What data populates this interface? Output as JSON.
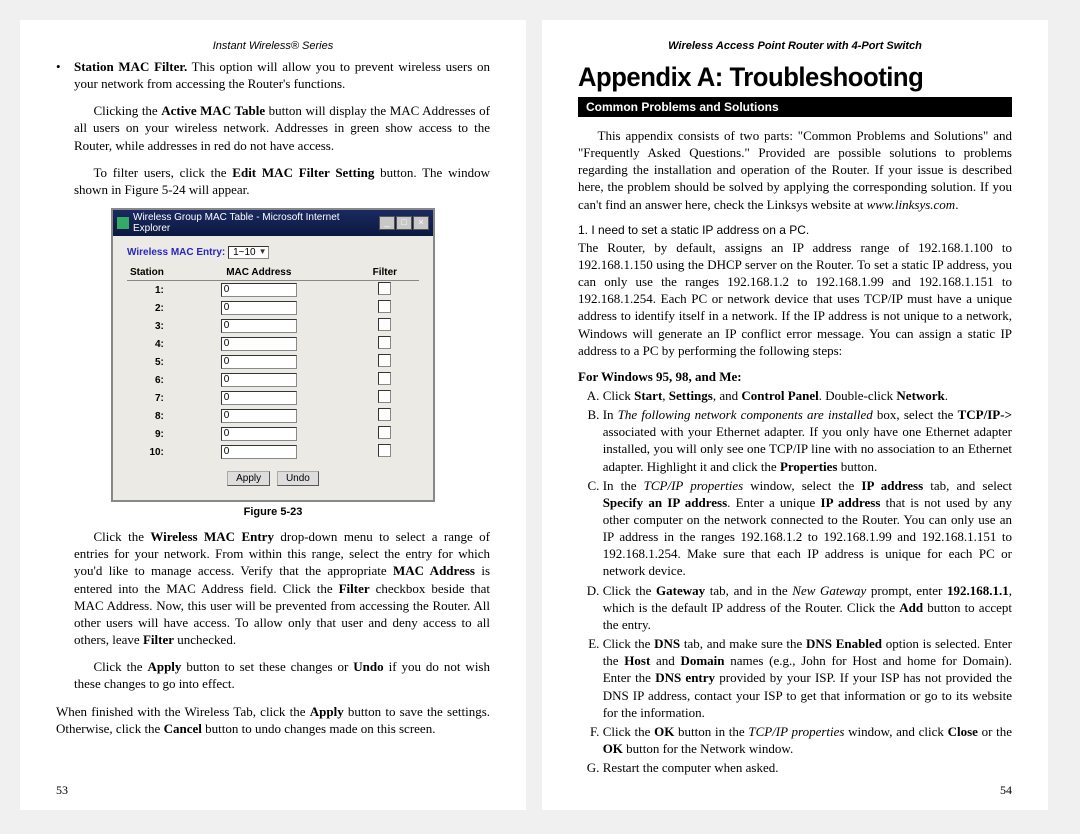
{
  "left": {
    "header": "Instant Wireless® Series",
    "bullet_lead": "Station MAC Filter.",
    "bullet_rest": " This option will allow you to prevent wireless users on your network from accessing the Router's functions.",
    "p1a": "Clicking the ",
    "p1b": "Active MAC Table",
    "p1c": "  button will display the MAC Addresses of all users on your wireless network. Addresses in green show access to the Router, while addresses in red do not have access.",
    "p2a": "To filter users, click the ",
    "p2b": "Edit MAC Filter Setting",
    "p2c": " button. The window shown in Figure 5-24 will appear.",
    "ss": {
      "title": "Wireless Group MAC Table - Microsoft Internet Explorer",
      "entry_label": "Wireless MAC Entry:",
      "dd_value": "1~10",
      "th1": "Station",
      "th2": "MAC Address",
      "th3": "Filter",
      "rows": [
        "1:",
        "2:",
        "3:",
        "4:",
        "5:",
        "6:",
        "7:",
        "8:",
        "9:",
        "10:"
      ],
      "mac_val": "0",
      "apply": "Apply",
      "undo": "Undo"
    },
    "fig_caption": "Figure 5-23",
    "p3a": "Click the ",
    "p3b": "Wireless MAC Entry",
    "p3c": " drop-down menu to select a range of entries for your network. From within this range, select the entry for which you'd like to manage access. Verify that the appropriate ",
    "p3d": "MAC Address",
    "p3e": " is entered into the MAC Address field. Click the ",
    "p3f": "Filter",
    "p3g": " checkbox beside that MAC Address. Now, this user will be prevented from accessing the Router. All other users will have access. To allow only that user and deny access to all others, leave ",
    "p3h": "Filter",
    "p3i": " unchecked.",
    "p4a": "Click the ",
    "p4b": "Apply",
    "p4c": " button to set these changes or ",
    "p4d": "Undo",
    "p4e": " if you do not wish these changes to go into effect.",
    "p5a": "When finished with the Wireless Tab, click the ",
    "p5b": "Apply",
    "p5c": " button to save the settings. Otherwise, click the ",
    "p5d": "Cancel",
    "p5e": " button to undo changes made on this screen.",
    "page_num": "53"
  },
  "right": {
    "header": "Wireless Access Point Router with 4-Port Switch",
    "title": "Appendix A: Troubleshooting",
    "section": "Common Problems and Solutions",
    "intro1": "This appendix consists of two parts: \"Common Problems and Solutions\" and \"Frequently Asked Questions.\" Provided are possible solutions to problems regarding the installation and operation of the Router. If your issue is described here, the problem should be solved by applying the corresponding solution. If you can't find an answer here, check the Linksys website at ",
    "intro_url": "www.linksys.com",
    "intro_end": ".",
    "q1": "1. I need to set a static IP address on a PC.",
    "q1body": "The Router, by default, assigns an IP address range of 192.168.1.100 to 192.168.1.150 using the DHCP server on the Router. To set a static IP address, you can only use the ranges 192.168.1.2 to 192.168.1.99 and 192.168.1.151 to 192.168.1.254. Each PC or network device that uses TCP/IP must have a unique address to identify itself in a network. If the IP address is not unique to a network, Windows will generate an IP conflict error message.  You can assign a static IP address to a PC by performing the following steps:",
    "sub1": "For Windows 95, 98, and Me:",
    "A1": "Click ",
    "A2": "Start",
    "A3": ", ",
    "A4": "Settings",
    "A5": ", and ",
    "A6": "Control Panel",
    "A7": ". Double-click ",
    "A8": "Network",
    "A9": ".",
    "B1": "In ",
    "B2": "The following network components are installed",
    "B3": " box, select the ",
    "B4": "TCP/IP->",
    "B5": " associated with your Ethernet adapter. If you only have one Ethernet adapter installed, you will only see one TCP/IP line with no association to an Ethernet adapter.  Highlight it and click the ",
    "B6": "Properties",
    "B7": " button.",
    "C1": "In the ",
    "C2": "TCP/IP properties",
    "C3": " window, select the ",
    "C4": "IP address",
    "C5": " tab, and select ",
    "C6": "Specify an IP address",
    "C7": ". Enter a unique ",
    "C8": "IP address",
    "C9": " that is not used by any other computer on the network connected to the Router. You can only use an IP address in the ranges 192.168.1.2 to 192.168.1.99 and 192.168.1.151 to 192.168.1.254.  Make sure that each IP address is unique for each PC or network device.",
    "D1": "Click the ",
    "D2": "Gateway",
    "D3": " tab, and in the ",
    "D4": "New Gateway",
    "D5": " prompt, enter ",
    "D6": "192.168.1.1",
    "D7": ", which is the default IP address of the Router. Click the ",
    "D8": "Add",
    "D9": " button to accept the entry.",
    "E1": "Click the ",
    "E2": "DNS",
    "E3": " tab, and make sure the ",
    "E4": "DNS Enabled",
    "E5": " option is selected. Enter the ",
    "E6": "Host",
    "E7": " and ",
    "E8": "Domain",
    "E9": " names (e.g., John for Host and home for Domain). Enter the ",
    "E10": "DNS entry",
    "E11": " provided by your ISP. If your ISP has not provided the DNS IP address, contact your ISP to get that information or go to its website for the information.",
    "F1": "Click the ",
    "F2": "OK",
    "F3": " button in the ",
    "F4": "TCP/IP properties",
    "F5": " window, and click ",
    "F6": "Close",
    "F7": " or  the ",
    "F8": "OK",
    "F9": " button for the Network window.",
    "G1": "Restart the computer when asked.",
    "page_num": "54"
  }
}
